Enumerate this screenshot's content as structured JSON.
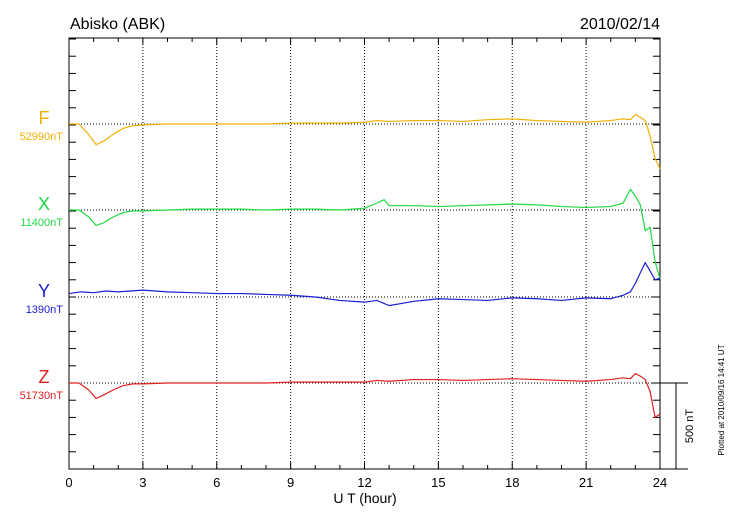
{
  "chart_data": {
    "type": "line",
    "title": "Abisko (ABK)",
    "date": "2010/02/14",
    "xlabel": "U T (hour)",
    "xlim": [
      0,
      24
    ],
    "xticks": [
      "0",
      "3",
      "6",
      "9",
      "12",
      "15",
      "18",
      "21",
      "24"
    ],
    "scale_label": "500 nT",
    "plotted_note": "Plotted at 2010/09/16 14:41 UT",
    "series": [
      {
        "name": "F",
        "baseline_label": "52990nT",
        "color": "#f0b000",
        "x": [
          0,
          0.4,
          0.8,
          1.1,
          1.4,
          1.8,
          2.2,
          2.6,
          3,
          4,
          5,
          6,
          7,
          8,
          9,
          10,
          11,
          12,
          12.5,
          13,
          14,
          15,
          16,
          17,
          18,
          19,
          20,
          21,
          22,
          22.5,
          22.8,
          23,
          23.2,
          23.4,
          23.6,
          23.8,
          24
        ],
        "values": [
          0,
          0,
          -60,
          -120,
          -100,
          -60,
          -25,
          -10,
          -5,
          0,
          0,
          0,
          0,
          0,
          5,
          5,
          5,
          10,
          20,
          15,
          20,
          20,
          15,
          25,
          30,
          20,
          15,
          10,
          20,
          30,
          25,
          55,
          40,
          20,
          -70,
          -200,
          -260
        ]
      },
      {
        "name": "X",
        "baseline_label": "11400nT",
        "color": "#20d840",
        "x": [
          0,
          0.4,
          0.8,
          1.1,
          1.4,
          1.8,
          2.2,
          2.6,
          3,
          4,
          5,
          6,
          7,
          8,
          9,
          10,
          11,
          12,
          12.5,
          12.8,
          13,
          14,
          15,
          16,
          17,
          18,
          19,
          20,
          21,
          22,
          22.5,
          22.8,
          23,
          23.2,
          23.4,
          23.6,
          23.8,
          24
        ],
        "values": [
          0,
          0,
          -40,
          -90,
          -75,
          -40,
          -15,
          -5,
          -5,
          0,
          5,
          5,
          5,
          0,
          5,
          5,
          0,
          10,
          40,
          60,
          25,
          25,
          20,
          25,
          30,
          35,
          30,
          20,
          15,
          20,
          40,
          120,
          80,
          30,
          -120,
          -100,
          -300,
          -400
        ]
      },
      {
        "name": "Y",
        "baseline_label": "1390nT",
        "color": "#1820d0",
        "x": [
          0,
          0.5,
          1,
          1.5,
          2,
          3,
          4,
          5,
          6,
          7,
          8,
          9,
          10,
          11,
          12,
          12.5,
          13,
          14,
          15,
          16,
          17,
          18,
          19,
          20,
          21,
          22,
          22.5,
          22.8,
          23,
          23.2,
          23.4,
          23.6,
          23.8,
          24
        ],
        "values": [
          20,
          30,
          25,
          35,
          30,
          40,
          30,
          25,
          20,
          20,
          15,
          10,
          0,
          -20,
          -30,
          -20,
          -50,
          -25,
          -10,
          -15,
          -20,
          -5,
          -10,
          -20,
          -5,
          -10,
          10,
          30,
          80,
          140,
          200,
          150,
          100,
          110
        ]
      },
      {
        "name": "Z",
        "baseline_label": "51730nT",
        "color": "#e02020",
        "x": [
          0,
          0.4,
          0.8,
          1.1,
          1.4,
          1.8,
          2.2,
          2.6,
          3,
          4,
          5,
          6,
          7,
          8,
          9,
          10,
          11,
          12,
          12.5,
          13,
          14,
          15,
          16,
          17,
          18,
          19,
          20,
          21,
          22,
          22.5,
          22.8,
          23,
          23.2,
          23.4,
          23.6,
          23.8,
          24
        ],
        "values": [
          0,
          0,
          -40,
          -90,
          -70,
          -40,
          -15,
          -5,
          -5,
          0,
          0,
          0,
          0,
          0,
          5,
          5,
          5,
          5,
          15,
          10,
          20,
          20,
          15,
          20,
          25,
          20,
          15,
          10,
          20,
          30,
          25,
          55,
          40,
          20,
          -50,
          -200,
          -180
        ]
      }
    ]
  }
}
